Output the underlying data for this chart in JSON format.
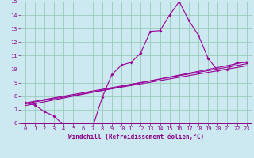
{
  "bg_color": "#cce8f0",
  "line_color": "#990099",
  "grid_color": "#99ccbb",
  "xlabel": "Windchill (Refroidissement éolien,°C)",
  "xlim": [
    -0.5,
    23.5
  ],
  "ylim": [
    6,
    15
  ],
  "yticks": [
    6,
    7,
    8,
    9,
    10,
    11,
    12,
    13,
    14,
    15
  ],
  "xticks": [
    0,
    1,
    2,
    3,
    4,
    5,
    6,
    7,
    8,
    9,
    10,
    11,
    12,
    13,
    14,
    15,
    16,
    17,
    18,
    19,
    20,
    21,
    22,
    23
  ],
  "line1_x": [
    0,
    1,
    2,
    3,
    4,
    5,
    6,
    7,
    8,
    9,
    10,
    11,
    12,
    13,
    14,
    15,
    16,
    17,
    18,
    19,
    20,
    21,
    22,
    23
  ],
  "line1_y": [
    7.5,
    7.35,
    6.85,
    6.55,
    5.85,
    5.6,
    5.85,
    5.7,
    7.9,
    9.6,
    10.3,
    10.5,
    11.2,
    12.8,
    12.85,
    14.0,
    15.0,
    13.6,
    12.5,
    10.8,
    9.9,
    10.0,
    10.5,
    10.5
  ],
  "line2_x": [
    0,
    23
  ],
  "line2_y": [
    7.5,
    10.4
  ],
  "line3_x": [
    0,
    23
  ],
  "line3_y": [
    7.3,
    10.55
  ],
  "line4_x": [
    0,
    23
  ],
  "line4_y": [
    7.45,
    10.25
  ],
  "tick_color": "#880088",
  "spine_color": "#880088",
  "label_fontsize": 5.0,
  "xlabel_fontsize": 5.5
}
